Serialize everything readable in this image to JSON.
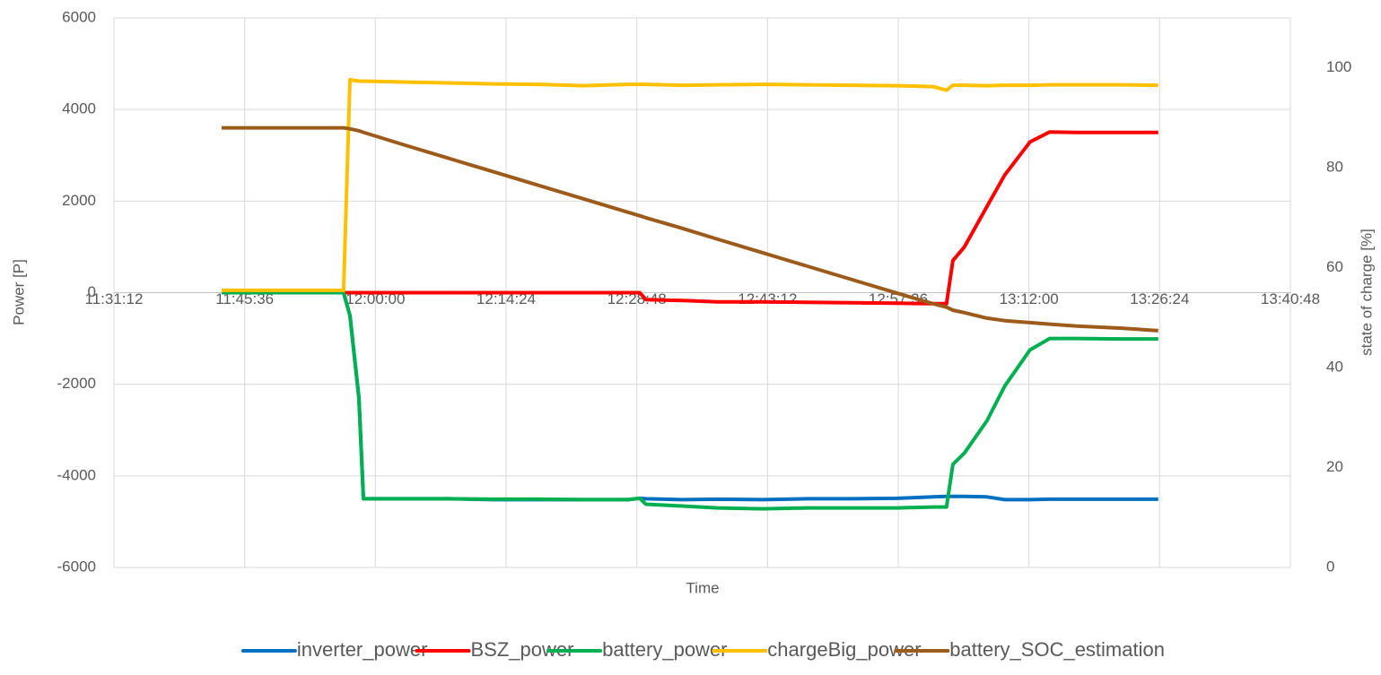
{
  "chart_data": {
    "type": "line",
    "xlabel": "Time",
    "ylabel": "Power [P]",
    "y2label": "state of charge [%]",
    "x": [
      42184,
      42498,
      42990,
      43032,
      43091,
      43121,
      43387,
      43684,
      43980,
      44277,
      44573,
      44870,
      44947,
      44988,
      45226,
      45463,
      45759,
      46056,
      46352,
      46649,
      46886,
      46975,
      47017,
      47094,
      47242,
      47360,
      47527,
      47657,
      47835,
      48131,
      48375
    ],
    "xlim": [
      41472,
      49248
    ],
    "xticks": [
      {
        "value": 41472,
        "label": "11:31:12"
      },
      {
        "value": 42336,
        "label": "11:45:36"
      },
      {
        "value": 43200,
        "label": "12:00:00"
      },
      {
        "value": 44064,
        "label": "12:14:24"
      },
      {
        "value": 44928,
        "label": "12:28:48"
      },
      {
        "value": 45792,
        "label": "12:43:12"
      },
      {
        "value": 46656,
        "label": "12:57:36"
      },
      {
        "value": 47520,
        "label": "13:12:00"
      },
      {
        "value": 48384,
        "label": "13:26:24"
      },
      {
        "value": 49248,
        "label": "13:40:48"
      }
    ],
    "ylim": [
      -6000,
      6000
    ],
    "yticks": [
      -6000,
      -4000,
      -2000,
      0,
      2000,
      4000,
      6000
    ],
    "y2lim": [
      0,
      110
    ],
    "y2ticks": [
      0,
      20,
      40,
      60,
      80,
      100
    ],
    "grid": true,
    "legend": "bottom",
    "series": [
      {
        "name": "inverter_power",
        "color": "#0070c0",
        "values": [
          0,
          0,
          0,
          -500,
          -2300,
          -4500,
          -4500,
          -4500,
          -4520,
          -4520,
          -4520,
          -4520,
          -4490,
          -4500,
          -4520,
          -4510,
          -4520,
          -4500,
          -4500,
          -4490,
          -4460,
          -4450,
          -4450,
          -4450,
          -4460,
          -4520,
          -4520,
          -4510,
          -4510,
          -4510,
          -4510
        ]
      },
      {
        "name": "BSZ_power",
        "color": "#ff0000",
        "values": [
          0,
          0,
          0,
          0,
          0,
          0,
          0,
          0,
          0,
          0,
          0,
          0,
          0,
          -150,
          -170,
          -200,
          -200,
          -210,
          -220,
          -230,
          -240,
          -240,
          700,
          1000,
          1880,
          2570,
          3290,
          3510,
          3500,
          3500,
          3500
        ]
      },
      {
        "name": "battery_power",
        "color": "#00b050",
        "values": [
          0,
          0,
          0,
          -500,
          -2300,
          -4500,
          -4500,
          -4500,
          -4510,
          -4510,
          -4520,
          -4520,
          -4490,
          -4620,
          -4660,
          -4700,
          -4720,
          -4700,
          -4700,
          -4700,
          -4680,
          -4680,
          -3750,
          -3500,
          -2800,
          -2040,
          -1250,
          -1000,
          -1000,
          -1010,
          -1010
        ]
      },
      {
        "name": "chargeBig_power",
        "color": "#ffc000",
        "values": [
          50,
          50,
          50,
          4650,
          4620,
          4620,
          4600,
          4580,
          4560,
          4550,
          4520,
          4550,
          4550,
          4550,
          4530,
          4540,
          4550,
          4540,
          4530,
          4520,
          4500,
          4420,
          4530,
          4530,
          4520,
          4530,
          4530,
          4540,
          4540,
          4540,
          4530
        ]
      },
      {
        "name": "battery_SOC_estimation",
        "color": "#9c5b1a",
        "axis": "y2",
        "values": [
          88,
          88,
          88,
          87.8,
          87.4,
          87.1,
          84.6,
          81.9,
          79.2,
          76.5,
          73.8,
          71.1,
          70.4,
          70.0,
          67.9,
          65.7,
          63.0,
          60.3,
          57.6,
          54.9,
          52.8,
          52.1,
          51.5,
          51.0,
          49.9,
          49.4,
          49.0,
          48.7,
          48.3,
          47.9,
          47.4
        ]
      }
    ]
  }
}
